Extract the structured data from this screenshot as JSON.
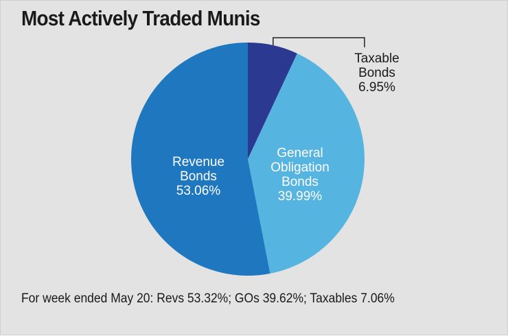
{
  "chart_data": {
    "type": "pie",
    "title": "Most Actively Traded Munis",
    "slices": [
      {
        "label": "Taxable Bonds",
        "lines": [
          "Taxable",
          "Bonds"
        ],
        "value": 6.95,
        "display": "6.95%",
        "color": "#2b3990",
        "label_color": "#1a1a1a"
      },
      {
        "label": "General Obligation Bonds",
        "lines": [
          "General",
          "Obligation",
          "Bonds"
        ],
        "value": 39.99,
        "display": "39.99%",
        "color": "#56b4e0",
        "label_color": "#ffffff"
      },
      {
        "label": "Revenue Bonds",
        "lines": [
          "Revenue",
          "Bonds"
        ],
        "value": 53.06,
        "display": "53.06%",
        "color": "#1f78bf",
        "label_color": "#ffffff"
      }
    ],
    "footnote": "For week ended May 20: Revs 53.32%; GOs 39.62%; Taxables 7.06%"
  }
}
